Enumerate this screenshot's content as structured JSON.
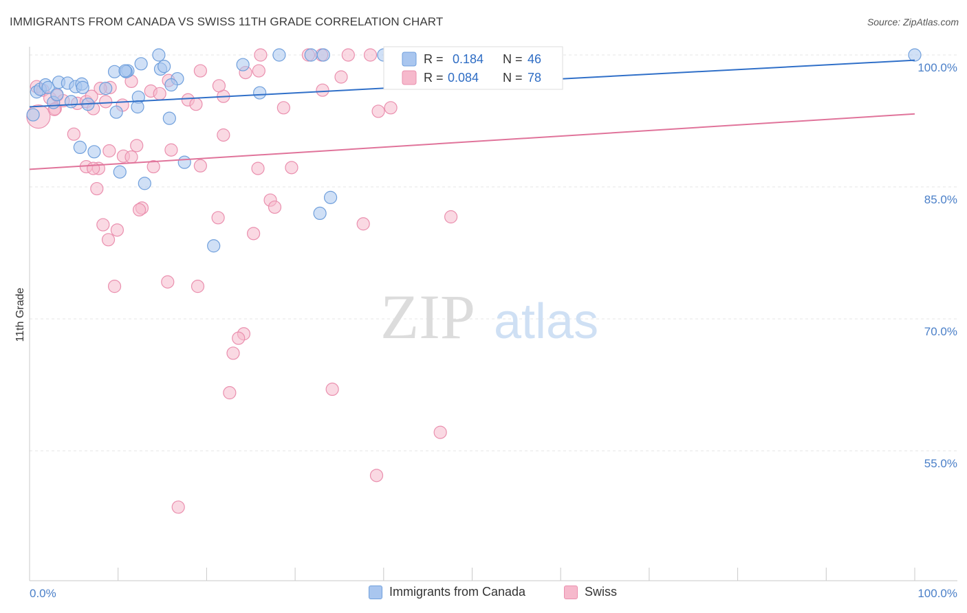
{
  "title": "IMMIGRANTS FROM CANADA VS SWISS 11TH GRADE CORRELATION CHART",
  "source": "Source: ZipAtlas.com",
  "watermark": {
    "zip": "ZIP",
    "atlas": "atlas"
  },
  "legend_stats": [
    {
      "r_label": "R =",
      "r_value": "0.184",
      "n_label": "N =",
      "n_value": "46"
    },
    {
      "r_label": "R =",
      "r_value": "0.084",
      "n_label": "N =",
      "n_value": "78"
    }
  ],
  "bottom_legend": [
    {
      "label": "Immigrants from Canada"
    },
    {
      "label": "Swiss"
    }
  ],
  "colors": {
    "blue_fill": "#a9c6ef",
    "blue_stroke": "#6f9fdc",
    "blue_line": "#2f6fc8",
    "pink_fill": "#f6b9cc",
    "pink_stroke": "#ea8fae",
    "pink_line": "#e0739a",
    "tick_text": "#4a7fc8",
    "grid": "#e6e6e6"
  },
  "chart_data": {
    "type": "scatter",
    "title": "IMMIGRANTS FROM CANADA VS SWISS 11TH GRADE CORRELATION CHART",
    "xlabel": "",
    "ylabel": "11th Grade",
    "xlim": [
      0,
      100
    ],
    "ylim": [
      37,
      100
    ],
    "x_tick_labels": [
      "0.0%",
      "100.0%"
    ],
    "y_ticks": [
      55,
      70,
      85,
      100
    ],
    "y_tick_labels": [
      "55.0%",
      "70.0%",
      "85.0%",
      "100.0%"
    ],
    "grid": true,
    "legend_placement": "top-center",
    "series": [
      {
        "name": "Immigrants from Canada",
        "r": 0.184,
        "n": 46,
        "trend": {
          "x": [
            0,
            100
          ],
          "y": [
            94.1,
            99.4
          ]
        },
        "points": [
          [
            0.8,
            95.8
          ],
          [
            1.2,
            96.1
          ],
          [
            1.8,
            96.6
          ],
          [
            2.1,
            96.3
          ],
          [
            3.3,
            96.9
          ],
          [
            2.7,
            94.6
          ],
          [
            4.3,
            96.8
          ],
          [
            5.2,
            96.4
          ],
          [
            5.9,
            96.7
          ],
          [
            6.0,
            96.3
          ],
          [
            4.7,
            94.7
          ],
          [
            6.6,
            94.4
          ],
          [
            3.1,
            95.5
          ],
          [
            9.6,
            98.1
          ],
          [
            11.1,
            98.2
          ],
          [
            10.9,
            98.1
          ],
          [
            12.3,
            95.2
          ],
          [
            14.8,
            98.4
          ],
          [
            15.2,
            98.7
          ],
          [
            14.6,
            100.0
          ],
          [
            16.7,
            97.3
          ],
          [
            16.0,
            96.6
          ],
          [
            10.8,
            98.2
          ],
          [
            12.6,
            99.0
          ],
          [
            9.8,
            93.5
          ],
          [
            12.2,
            94.1
          ],
          [
            7.3,
            89.0
          ],
          [
            5.7,
            89.5
          ],
          [
            10.2,
            86.7
          ],
          [
            13.0,
            85.4
          ],
          [
            17.5,
            87.8
          ],
          [
            15.8,
            92.8
          ],
          [
            20.8,
            78.3
          ],
          [
            24.1,
            98.9
          ],
          [
            26.0,
            95.7
          ],
          [
            28.2,
            100.0
          ],
          [
            31.8,
            100.0
          ],
          [
            33.2,
            100.0
          ],
          [
            40.0,
            100.0
          ],
          [
            42.2,
            100.0
          ],
          [
            47.5,
            100.0
          ],
          [
            34.0,
            83.8
          ],
          [
            32.8,
            82.0
          ],
          [
            100.0,
            100.0
          ],
          [
            0.4,
            93.2
          ],
          [
            8.6,
            96.2
          ]
        ]
      },
      {
        "name": "Swiss",
        "r": 0.084,
        "n": 78,
        "trend": {
          "x": [
            0,
            100
          ],
          "y": [
            87.0,
            93.3
          ]
        },
        "points": [
          [
            0.8,
            96.4
          ],
          [
            1.5,
            96.0
          ],
          [
            2.3,
            95.1
          ],
          [
            3.1,
            95.4
          ],
          [
            2.9,
            93.9
          ],
          [
            3.8,
            94.8
          ],
          [
            5.4,
            94.5
          ],
          [
            6.4,
            94.7
          ],
          [
            2.8,
            93.8
          ],
          [
            7.2,
            93.9
          ],
          [
            8.6,
            94.7
          ],
          [
            10.5,
            94.3
          ],
          [
            9.1,
            96.3
          ],
          [
            13.7,
            95.9
          ],
          [
            14.7,
            95.6
          ],
          [
            15.7,
            97.1
          ],
          [
            17.9,
            94.9
          ],
          [
            18.8,
            94.4
          ],
          [
            19.3,
            98.2
          ],
          [
            21.9,
            95.3
          ],
          [
            24.4,
            98.0
          ],
          [
            25.9,
            98.2
          ],
          [
            26.1,
            100.0
          ],
          [
            31.5,
            100.0
          ],
          [
            33.0,
            100.0
          ],
          [
            36.0,
            100.0
          ],
          [
            38.5,
            100.0
          ],
          [
            42.5,
            100.0
          ],
          [
            45.5,
            100.0
          ],
          [
            49.3,
            100.0
          ],
          [
            52.4,
            100.0
          ],
          [
            33.1,
            96.0
          ],
          [
            35.2,
            97.5
          ],
          [
            39.4,
            93.6
          ],
          [
            28.7,
            94.0
          ],
          [
            9.0,
            89.1
          ],
          [
            12.1,
            89.7
          ],
          [
            16.0,
            89.2
          ],
          [
            7.8,
            87.1
          ],
          [
            10.6,
            88.5
          ],
          [
            11.5,
            88.4
          ],
          [
            14.0,
            87.3
          ],
          [
            19.3,
            87.4
          ],
          [
            25.8,
            87.1
          ],
          [
            29.6,
            87.2
          ],
          [
            6.4,
            87.3
          ],
          [
            7.2,
            87.1
          ],
          [
            7.6,
            84.8
          ],
          [
            12.7,
            82.6
          ],
          [
            12.4,
            82.4
          ],
          [
            21.3,
            81.5
          ],
          [
            27.2,
            83.5
          ],
          [
            27.7,
            82.7
          ],
          [
            25.3,
            79.7
          ],
          [
            37.7,
            80.8
          ],
          [
            47.6,
            81.6
          ],
          [
            8.3,
            80.7
          ],
          [
            9.9,
            80.1
          ],
          [
            8.9,
            79.0
          ],
          [
            9.6,
            73.7
          ],
          [
            15.6,
            74.2
          ],
          [
            19.0,
            73.7
          ],
          [
            24.2,
            68.3
          ],
          [
            23.6,
            67.8
          ],
          [
            23.0,
            66.1
          ],
          [
            22.6,
            61.6
          ],
          [
            34.2,
            62.0
          ],
          [
            46.4,
            57.1
          ],
          [
            39.2,
            52.2
          ],
          [
            16.8,
            48.6
          ],
          [
            21.9,
            90.9
          ],
          [
            5.0,
            91.0
          ],
          [
            8.0,
            96.2
          ],
          [
            7.0,
            95.3
          ],
          [
            11.5,
            97.0
          ],
          [
            21.4,
            96.5
          ],
          [
            40.8,
            94.0
          ],
          [
            1.0,
            93.0
          ]
        ]
      }
    ]
  }
}
